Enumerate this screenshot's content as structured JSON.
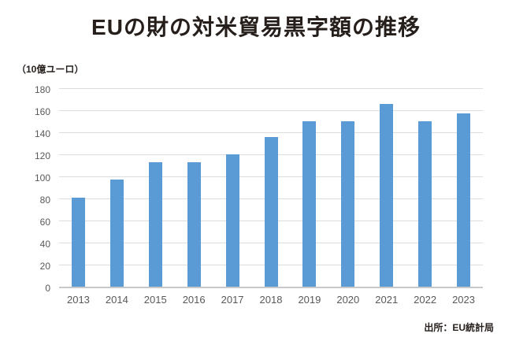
{
  "page": {
    "title": "EUの財の対米貿易黒字額の推移",
    "unit_label": "（10億ユーロ）",
    "source": "出所：EU統計局"
  },
  "colors": {
    "bar": "#5B9BD5",
    "title_text": "#251e1b",
    "axis_text": "#595959",
    "gridline": "#dcdcdc",
    "axis_line": "#c9c9c9",
    "background": "#ffffff"
  },
  "chart_data": {
    "type": "bar",
    "title": "EUの財の対米貿易黒字額の推移",
    "ylabel": "（10億ユーロ）",
    "xlabel": "",
    "categories": [
      "2013",
      "2014",
      "2015",
      "2016",
      "2017",
      "2018",
      "2019",
      "2020",
      "2021",
      "2022",
      "2023"
    ],
    "values": [
      81,
      97,
      113,
      113,
      120,
      136,
      150,
      150,
      166,
      150,
      157
    ],
    "ylim": [
      0,
      180
    ],
    "ytick_step": 20,
    "grid": "horizontal",
    "legend": "none",
    "source": "出所：EU統計局"
  }
}
